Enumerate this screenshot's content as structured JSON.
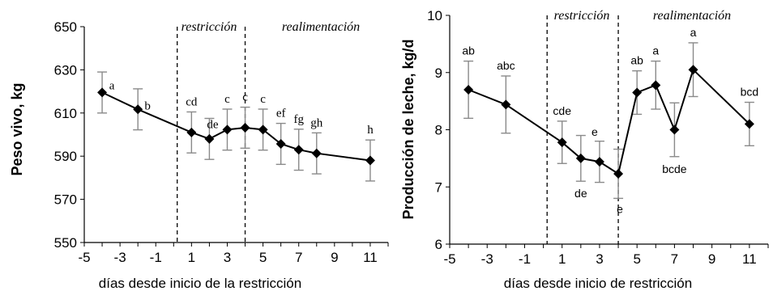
{
  "chart_data": [
    {
      "type": "line",
      "ylabel": "Peso vivo, kg",
      "xlabel": "días desde inicio de la restricción",
      "xlim": [
        -5,
        12
      ],
      "ylim": [
        550,
        650
      ],
      "xticks": [
        -5,
        -3,
        -1,
        1,
        3,
        5,
        7,
        9,
        11
      ],
      "yticks": [
        550,
        570,
        590,
        610,
        630,
        650
      ],
      "phase_lines": [
        0.2,
        4
      ],
      "phase_labels": [
        "restricción",
        "realimentación"
      ],
      "label_font": "serif-small",
      "points": [
        {
          "x": -4,
          "y": 619.5,
          "err": 9.5,
          "group": "a"
        },
        {
          "x": -2,
          "y": 611.7,
          "err": 9.5,
          "group": "b"
        },
        {
          "x": 1,
          "y": 601,
          "err": 9.5,
          "group": "cd"
        },
        {
          "x": 2,
          "y": 598,
          "err": 9.5,
          "group": "de"
        },
        {
          "x": 3,
          "y": 602.3,
          "err": 9.5,
          "group": "c"
        },
        {
          "x": 4,
          "y": 603.2,
          "err": 9.5,
          "group": "c"
        },
        {
          "x": 5,
          "y": 602.3,
          "err": 9.5,
          "group": "c"
        },
        {
          "x": 6,
          "y": 595.7,
          "err": 9.5,
          "group": "ef"
        },
        {
          "x": 7,
          "y": 593,
          "err": 9.5,
          "group": "fg"
        },
        {
          "x": 8,
          "y": 591.3,
          "err": 9.5,
          "group": "gh"
        },
        {
          "x": 11,
          "y": 588,
          "err": 9.5,
          "group": "h"
        }
      ]
    },
    {
      "type": "line",
      "ylabel": "Producción de leche, kg/d",
      "xlabel": "días desde inicio de restricción",
      "xlim": [
        -5,
        12
      ],
      "ylim": [
        6,
        10
      ],
      "xticks": [
        -5,
        -3,
        -1,
        1,
        3,
        5,
        7,
        9,
        11
      ],
      "yticks": [
        6,
        7,
        8,
        9,
        10
      ],
      "phase_lines": [
        0.2,
        4
      ],
      "phase_labels": [
        "restricción",
        "realimentación"
      ],
      "label_font": "sans",
      "points": [
        {
          "x": -4,
          "y": 8.7,
          "err": 0.5,
          "group": "ab"
        },
        {
          "x": -2,
          "y": 8.44,
          "err": 0.5,
          "group": "abc"
        },
        {
          "x": 1,
          "y": 7.78,
          "err": 0.37,
          "group": "cde"
        },
        {
          "x": 2,
          "y": 7.5,
          "err": 0.4,
          "group": "de"
        },
        {
          "x": 3,
          "y": 7.44,
          "err": 0.36,
          "group": "e"
        },
        {
          "x": 4,
          "y": 7.23,
          "err": 0.43,
          "group": "e"
        },
        {
          "x": 5,
          "y": 8.65,
          "err": 0.38,
          "group": "ab"
        },
        {
          "x": 6,
          "y": 8.78,
          "err": 0.42,
          "group": "a"
        },
        {
          "x": 7,
          "y": 8.0,
          "err": 0.47,
          "group": "bcde"
        },
        {
          "x": 8,
          "y": 9.05,
          "err": 0.47,
          "group": "a"
        },
        {
          "x": 11,
          "y": 8.1,
          "err": 0.38,
          "group": "bcd"
        }
      ]
    }
  ]
}
